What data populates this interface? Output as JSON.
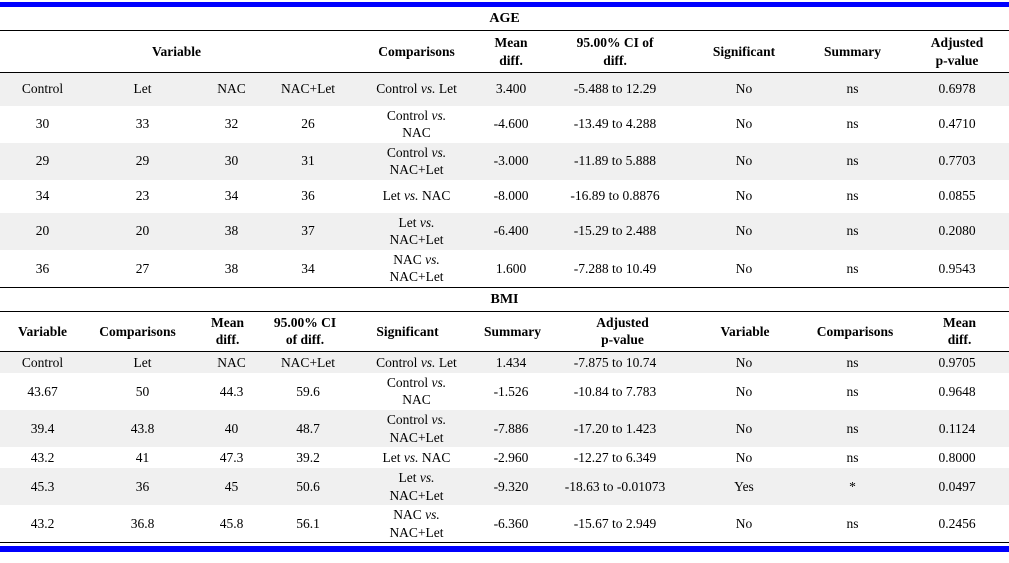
{
  "page": {
    "accent_color": "#0000fe",
    "alt_row_color": "#f0f0f0"
  },
  "age": {
    "title": "AGE",
    "header": {
      "variable": "Variable",
      "comparisons": "Comparisons",
      "mean_diff": "Mean diff.",
      "ci": "95.00% CI of diff.",
      "significant": "Significant",
      "summary": "Summary",
      "p_value": "Adjusted p-value"
    },
    "rows": [
      {
        "groups": [
          "Control",
          "Let",
          "NAC",
          "NAC+Let"
        ],
        "comparison": {
          "a": "Control",
          "vs": "vs.",
          "b": "Let",
          "two_line": false
        },
        "mean_diff": "3.400",
        "ci": "-5.488 to 12.29",
        "significant": "No",
        "summary": "ns",
        "p_value": "0.6978"
      },
      {
        "groups": [
          "30",
          "33",
          "32",
          "26"
        ],
        "comparison": {
          "a": "Control",
          "vs": "vs.",
          "b": "NAC",
          "two_line": true
        },
        "mean_diff": "-4.600",
        "ci": "-13.49 to 4.288",
        "significant": "No",
        "summary": "ns",
        "p_value": "0.4710"
      },
      {
        "groups": [
          "29",
          "29",
          "30",
          "31"
        ],
        "comparison": {
          "a": "Control",
          "vs": "vs.",
          "b": "NAC+Let",
          "two_line": true
        },
        "mean_diff": "-3.000",
        "ci": "-11.89 to 5.888",
        "significant": "No",
        "summary": "ns",
        "p_value": "0.7703"
      },
      {
        "groups": [
          "34",
          "23",
          "34",
          "36"
        ],
        "comparison": {
          "a": "Let",
          "vs": "vs.",
          "b": "NAC",
          "two_line": false
        },
        "mean_diff": "-8.000",
        "ci": "-16.89 to 0.8876",
        "significant": "No",
        "summary": "ns",
        "p_value": "0.0855"
      },
      {
        "groups": [
          "20",
          "20",
          "38",
          "37"
        ],
        "comparison": {
          "a": "Let",
          "vs": "vs.",
          "b": "NAC+Let",
          "two_line": true
        },
        "mean_diff": "-6.400",
        "ci": "-15.29 to 2.488",
        "significant": "No",
        "summary": "ns",
        "p_value": "0.2080"
      },
      {
        "groups": [
          "36",
          "27",
          "38",
          "34"
        ],
        "comparison": {
          "a": "NAC",
          "vs": "vs.",
          "b": "NAC+Let",
          "two_line": true
        },
        "mean_diff": "1.600",
        "ci": "-7.288 to 10.49",
        "significant": "No",
        "summary": "ns",
        "p_value": "0.9543"
      }
    ]
  },
  "bmi": {
    "title": "BMI",
    "header_labels": [
      "Variable",
      "Comparisons",
      "Mean diff.",
      "95.00% CI of diff.",
      "Significant",
      "Summary",
      "Adjusted p-value",
      "Variable",
      "Comparisons",
      "Mean diff."
    ],
    "rows": [
      {
        "groups": [
          "Control",
          "Let",
          "NAC",
          "NAC+Let"
        ],
        "comparison": {
          "a": "Control",
          "vs": "vs.",
          "b": "Let",
          "two_line": false
        },
        "mean_diff": "1.434",
        "ci": "-7.875 to 10.74",
        "significant": "No",
        "summary": "ns",
        "p_value": "0.9705"
      },
      {
        "groups": [
          "43.67",
          "50",
          "44.3",
          "59.6"
        ],
        "comparison": {
          "a": "Control",
          "vs": "vs.",
          "b": "NAC",
          "two_line": true
        },
        "mean_diff": "-1.526",
        "ci": "-10.84 to 7.783",
        "significant": "No",
        "summary": "ns",
        "p_value": "0.9648"
      },
      {
        "groups": [
          "39.4",
          "43.8",
          "40",
          "48.7"
        ],
        "comparison": {
          "a": "Control",
          "vs": "vs.",
          "b": "NAC+Let",
          "two_line": true
        },
        "mean_diff": "-7.886",
        "ci": "-17.20 to 1.423",
        "significant": "No",
        "summary": "ns",
        "p_value": "0.1124"
      },
      {
        "groups": [
          "43.2",
          "41",
          "47.3",
          "39.2"
        ],
        "comparison": {
          "a": "Let",
          "vs": "vs.",
          "b": "NAC",
          "two_line": false
        },
        "mean_diff": "-2.960",
        "ci": "-12.27 to 6.349",
        "significant": "No",
        "summary": "ns",
        "p_value": "0.8000"
      },
      {
        "groups": [
          "45.3",
          "36",
          "45",
          "50.6"
        ],
        "comparison": {
          "a": "Let",
          "vs": "vs.",
          "b": "NAC+Let",
          "two_line": true
        },
        "mean_diff": "-9.320",
        "ci": "-18.63 to -0.01073",
        "significant": "Yes",
        "summary": "*",
        "p_value": "0.0497"
      },
      {
        "groups": [
          "43.2",
          "36.8",
          "45.8",
          "56.1"
        ],
        "comparison": {
          "a": "NAC",
          "vs": "vs.",
          "b": "NAC+Let",
          "two_line": true
        },
        "mean_diff": "-6.360",
        "ci": "-15.67 to 2.949",
        "significant": "No",
        "summary": "ns",
        "p_value": "0.2456"
      }
    ]
  }
}
